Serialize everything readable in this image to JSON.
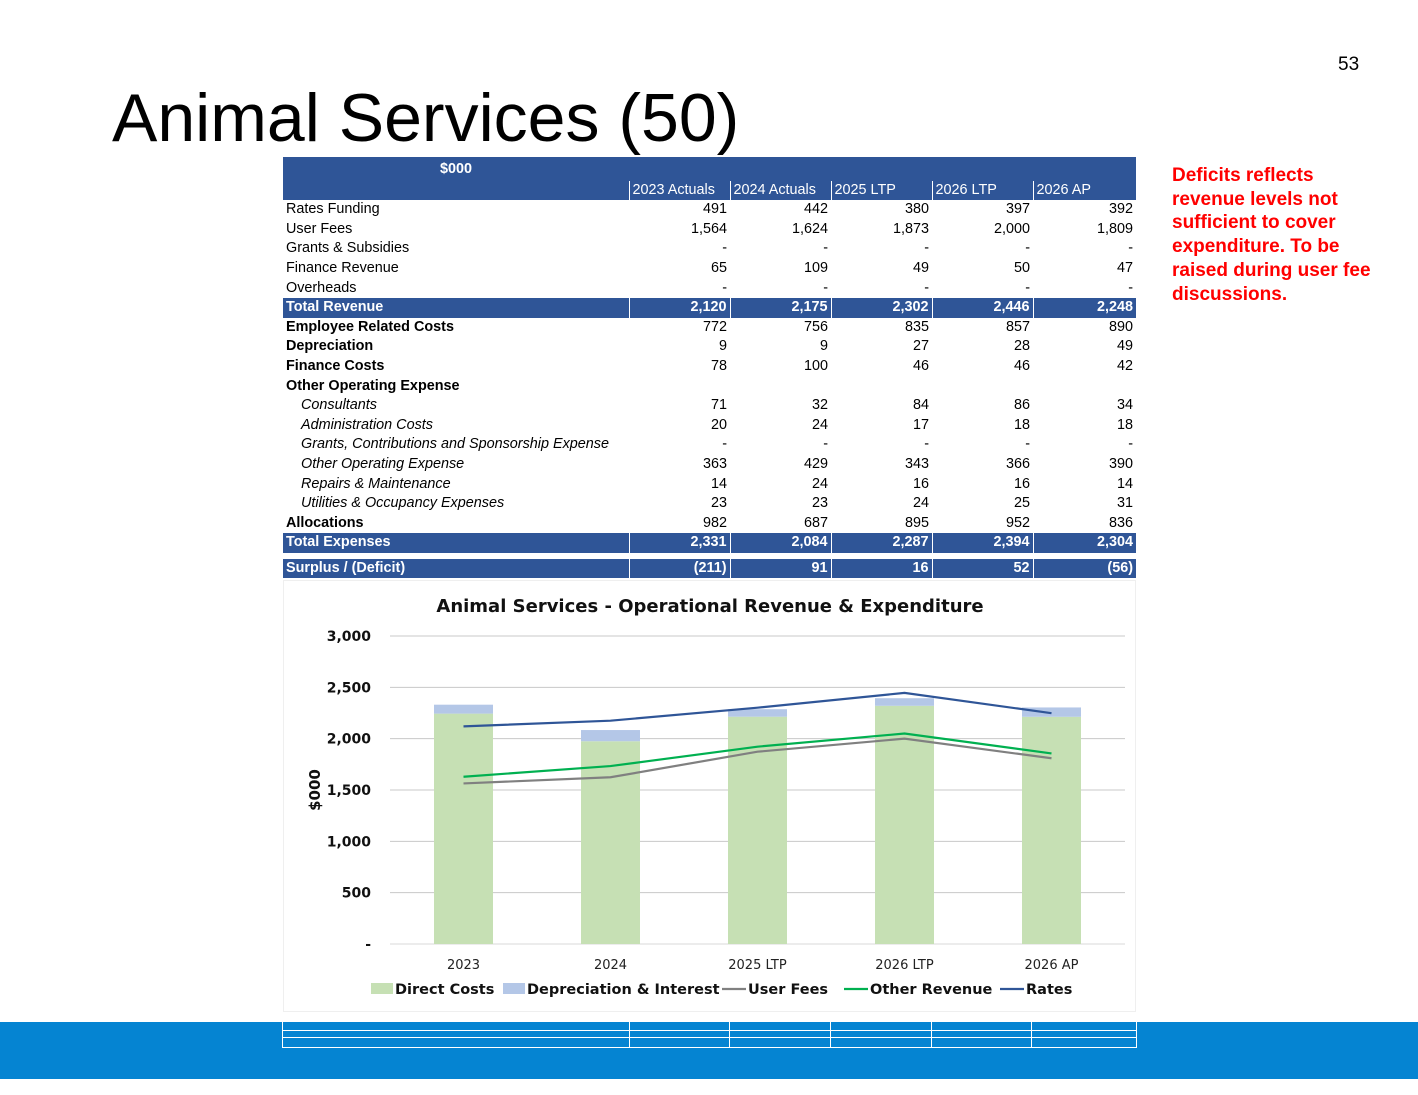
{
  "page": {
    "number": "53",
    "title": "Animal Services (50)",
    "side_note": "Deficits reflects revenue levels not sufficient to cover expenditure.  To be raised during user fee discussions."
  },
  "table": {
    "unit_label": "$000",
    "columns": [
      "2023 Actuals",
      "2024 Actuals",
      "2025 LTP",
      "2026 LTP",
      "2026 AP"
    ],
    "revenue_rows": [
      {
        "label": "Rates Funding",
        "values": [
          "491",
          "442",
          "380",
          "397",
          "392"
        ]
      },
      {
        "label": "User Fees",
        "values": [
          "1,564",
          "1,624",
          "1,873",
          "2,000",
          "1,809"
        ]
      },
      {
        "label": "Grants & Subsidies",
        "values": [
          "-",
          "-",
          "-",
          "-",
          "-"
        ]
      },
      {
        "label": "Finance Revenue",
        "values": [
          "65",
          "109",
          "49",
          "50",
          "47"
        ]
      },
      {
        "label": "Overheads",
        "values": [
          "-",
          "-",
          "-",
          "-",
          "-"
        ]
      }
    ],
    "total_revenue": {
      "label": "Total Revenue",
      "values": [
        "2,120",
        "2,175",
        "2,302",
        "2,446",
        "2,248"
      ]
    },
    "expense_rows": [
      {
        "label": "Employee Related Costs",
        "style": "bold",
        "values": [
          "772",
          "756",
          "835",
          "857",
          "890"
        ]
      },
      {
        "label": "Depreciation",
        "style": "bold",
        "values": [
          "9",
          "9",
          "27",
          "28",
          "49"
        ]
      },
      {
        "label": "Finance Costs",
        "style": "bold",
        "values": [
          "78",
          "100",
          "46",
          "46",
          "42"
        ]
      },
      {
        "label": "Other Operating  Expense",
        "style": "bold",
        "values": [
          "",
          "",
          "",
          "",
          ""
        ]
      },
      {
        "label": "Consultants",
        "style": "sub",
        "values": [
          "71",
          "32",
          "84",
          "86",
          "34"
        ]
      },
      {
        "label": "Administration Costs",
        "style": "sub",
        "values": [
          "20",
          "24",
          "17",
          "18",
          "18"
        ]
      },
      {
        "label": "Grants, Contributions and Sponsorship Expense",
        "style": "sub",
        "values": [
          "-",
          "-",
          "-",
          "-",
          "-"
        ]
      },
      {
        "label": "Other Operating Expense",
        "style": "sub",
        "values": [
          "363",
          "429",
          "343",
          "366",
          "390"
        ]
      },
      {
        "label": "Repairs & Maintenance",
        "style": "sub",
        "values": [
          "14",
          "24",
          "16",
          "16",
          "14"
        ]
      },
      {
        "label": "Utilities & Occupancy Expenses",
        "style": "sub",
        "values": [
          "23",
          "23",
          "24",
          "25",
          "31"
        ]
      },
      {
        "label": "Allocations",
        "style": "bold",
        "values": [
          "982",
          "687",
          "895",
          "952",
          "836"
        ]
      }
    ],
    "total_expenses": {
      "label": "Total Expenses",
      "values": [
        "2,331",
        "2,084",
        "2,287",
        "2,394",
        "2,304"
      ]
    },
    "surplus": {
      "label": "Surplus / (Deficit)",
      "values": [
        "(211)",
        "91",
        "16",
        "52",
        "(56)"
      ]
    }
  },
  "chart_data": {
    "type": "bar",
    "title": "Animal Services - Operational Revenue & Expenditure",
    "ylabel": "$000",
    "xlabel": "",
    "categories": [
      "2023",
      "2024",
      "2025 LTP",
      "2026 LTP",
      "2026 AP"
    ],
    "ylim": [
      0,
      3000
    ],
    "yticks": [
      0,
      500,
      1000,
      1500,
      2000,
      2500,
      3000
    ],
    "ytick_labels": [
      "-",
      "500",
      "1,000",
      "1,500",
      "2,000",
      "2,500",
      "3,000"
    ],
    "grid": true,
    "legend_position": "bottom",
    "series": [
      {
        "name": "Direct Costs",
        "kind": "stacked-bar",
        "color": "#c6e0b4",
        "values": [
          2244,
          1975,
          2214,
          2320,
          2213
        ]
      },
      {
        "name": "Depreciation & Interest",
        "kind": "stacked-bar",
        "color": "#b4c7e7",
        "values": [
          87,
          109,
          73,
          74,
          91
        ]
      },
      {
        "name": "User Fees",
        "kind": "line",
        "color": "#808080",
        "values": [
          1564,
          1624,
          1873,
          2000,
          1809
        ]
      },
      {
        "name": "Other Revenue",
        "kind": "line",
        "color": "#00b050",
        "values": [
          1629,
          1733,
          1922,
          2050,
          1856
        ]
      },
      {
        "name": "Rates",
        "kind": "line",
        "color": "#2f5597",
        "values": [
          2120,
          2175,
          2302,
          2446,
          2248
        ]
      }
    ]
  },
  "colors": {
    "header_blue": "#2f5597",
    "band_blue": "#0584d2",
    "note_red": "#ff0000"
  }
}
